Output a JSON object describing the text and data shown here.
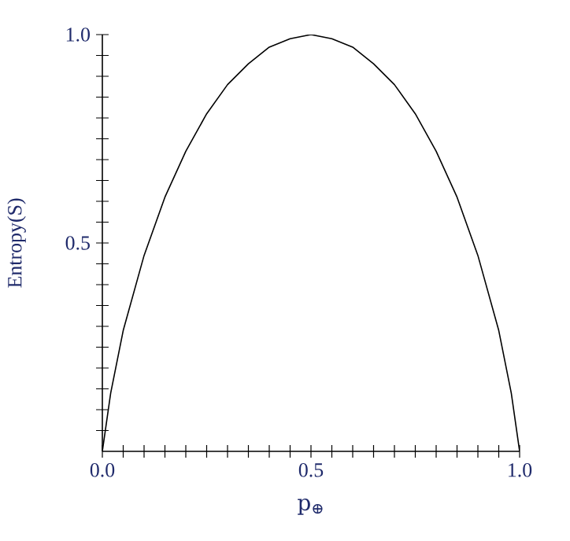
{
  "chart_data": {
    "type": "line",
    "xlabel": "p$_{⊕}$",
    "ylabel": "Entropy(S)",
    "x": [
      0,
      0.02,
      0.05,
      0.1,
      0.15,
      0.2,
      0.25,
      0.3,
      0.35,
      0.4,
      0.45,
      0.5,
      0.55,
      0.6,
      0.65,
      0.7,
      0.75,
      0.8,
      0.85,
      0.9,
      0.95,
      0.98,
      1
    ],
    "series": [
      {
        "color": "#000000",
        "values": [
          0,
          0.14,
          0.29,
          0.47,
          0.61,
          0.72,
          0.81,
          0.88,
          0.93,
          0.97,
          0.99,
          1.0,
          0.99,
          0.97,
          0.93,
          0.88,
          0.81,
          0.72,
          0.61,
          0.47,
          0.29,
          0.14,
          0
        ]
      }
    ],
    "xlim": [
      0,
      1
    ],
    "ylim": [
      0,
      1
    ],
    "xticks": [
      {
        "value": 0,
        "label": "0.0"
      },
      {
        "value": 0.05,
        "label": null
      },
      {
        "value": 0.1,
        "label": null
      },
      {
        "value": 0.15,
        "label": null
      },
      {
        "value": 0.2,
        "label": null
      },
      {
        "value": 0.25,
        "label": null
      },
      {
        "value": 0.3,
        "label": null
      },
      {
        "value": 0.35,
        "label": null
      },
      {
        "value": 0.4,
        "label": null
      },
      {
        "value": 0.45,
        "label": null
      },
      {
        "value": 0.5,
        "label": "0.5"
      },
      {
        "value": 0.55,
        "label": null
      },
      {
        "value": 0.6,
        "label": null
      },
      {
        "value": 0.65,
        "label": null
      },
      {
        "value": 0.7,
        "label": null
      },
      {
        "value": 0.75,
        "label": null
      },
      {
        "value": 0.8,
        "label": null
      },
      {
        "value": 0.85,
        "label": null
      },
      {
        "value": 0.9,
        "label": null
      },
      {
        "value": 0.95,
        "label": null
      },
      {
        "value": 1,
        "label": "1.0"
      }
    ],
    "yticks": [
      {
        "value": 0.05,
        "label": null
      },
      {
        "value": 0.1,
        "label": null
      },
      {
        "value": 0.15,
        "label": null
      },
      {
        "value": 0.2,
        "label": null
      },
      {
        "value": 0.25,
        "label": null
      },
      {
        "value": 0.3,
        "label": null
      },
      {
        "value": 0.35,
        "label": null
      },
      {
        "value": 0.4,
        "label": null
      },
      {
        "value": 0.45,
        "label": null
      },
      {
        "value": 0.5,
        "label": "0.5"
      },
      {
        "value": 0.55,
        "label": null
      },
      {
        "value": 0.6,
        "label": null
      },
      {
        "value": 0.65,
        "label": null
      },
      {
        "value": 0.7,
        "label": null
      },
      {
        "value": 0.75,
        "label": null
      },
      {
        "value": 0.8,
        "label": null
      },
      {
        "value": 0.85,
        "label": null
      },
      {
        "value": 0.9,
        "label": null
      },
      {
        "value": 0.95,
        "label": null
      },
      {
        "value": 1,
        "label": "1.0"
      }
    ],
    "grid": false,
    "marker": "none",
    "line_style": "solid"
  }
}
